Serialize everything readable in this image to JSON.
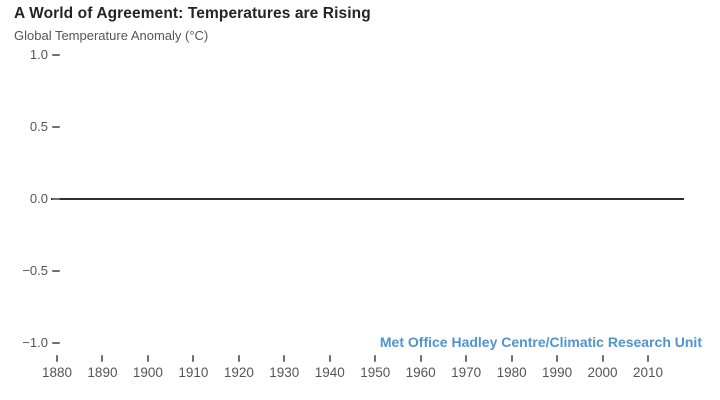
{
  "header": {
    "title": "A World of Agreement: Temperatures are Rising",
    "subtitle": "Global Temperature Anomaly (°C)"
  },
  "attribution": "Met Office Hadley Centre/Climatic Research Unit",
  "colors": {
    "title": "#242426",
    "label_gray": "#54555a",
    "tick_gray": "#6d6e71",
    "axis_line": "#2f2f31",
    "attribution_blue": "#4e94ce",
    "background": "#ffffff"
  },
  "chart_data": {
    "type": "line",
    "title": "A World of Agreement: Temperatures are Rising",
    "ylabel": "Global Temperature Anomaly (°C)",
    "xlabel": "",
    "xlim": [
      1878,
      2018
    ],
    "ylim": [
      -1.0,
      1.0
    ],
    "x_ticks": [
      1880,
      1890,
      1900,
      1910,
      1920,
      1930,
      1940,
      1950,
      1960,
      1970,
      1980,
      1990,
      2000,
      2010
    ],
    "y_ticks": [
      {
        "value": 1.0,
        "label": "1.0"
      },
      {
        "value": 0.5,
        "label": "0.5"
      },
      {
        "value": 0.0,
        "label": "0.0"
      },
      {
        "value": -0.5,
        "label": "−0.5"
      },
      {
        "value": -1.0,
        "label": "−1.0"
      }
    ],
    "baseline": 0.0,
    "grid": false,
    "legend": "none",
    "series": []
  }
}
